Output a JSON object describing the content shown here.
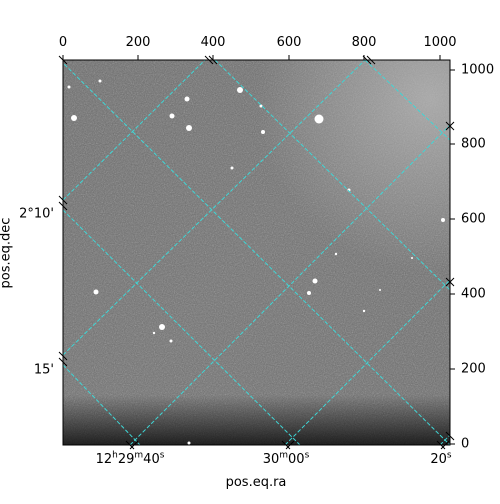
{
  "axes": {
    "xlabel": "pos.eq.ra",
    "ylabel": "pos.eq.dec",
    "top_ticks": [
      "0",
      "200",
      "400",
      "600",
      "800",
      "1000"
    ],
    "right_ticks": [
      "0",
      "200",
      "400",
      "600",
      "800",
      "1000"
    ],
    "bottom_ticks": [
      {
        "main": "12",
        "u1": "h",
        "mid": "29",
        "u2": "m",
        "sec": "40",
        "u3": "s"
      },
      {
        "main": "30",
        "u1": "m",
        "mid": "00",
        "u2": "s",
        "sec": "",
        "u3": ""
      },
      {
        "main": "20",
        "u1": "s",
        "mid": "",
        "u2": "",
        "sec": "",
        "u3": ""
      }
    ],
    "left_ticks": [
      "2°10'",
      "15'"
    ]
  },
  "colors": {
    "grid": "#3fd6d6",
    "frame": "#000000"
  }
}
